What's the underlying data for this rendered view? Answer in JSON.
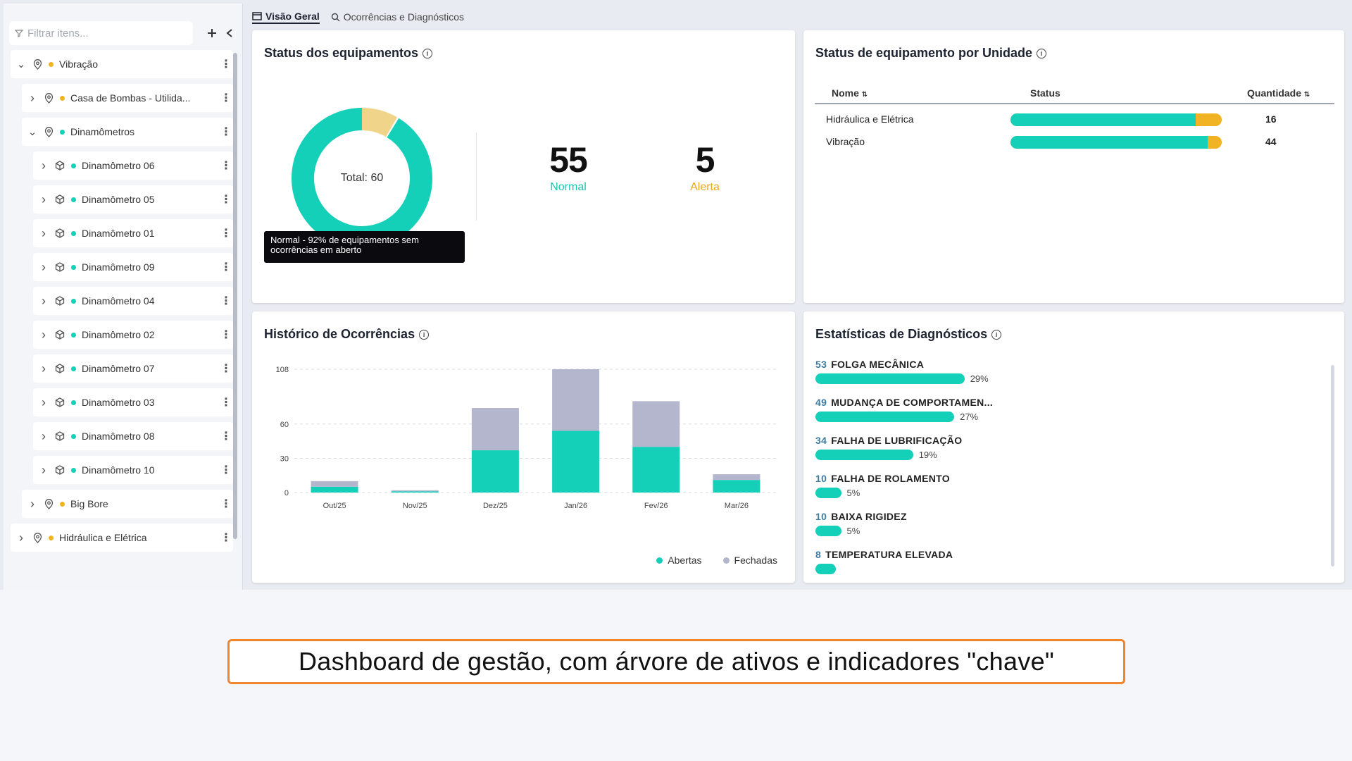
{
  "sidebar": {
    "filter_placeholder": "Filtrar itens...",
    "add_icon": "plus-icon",
    "collapse_icon": "chevron-left-icon",
    "tree": [
      {
        "label": "Vibração",
        "dot": "#f1b323",
        "icon": "location-pin-icon",
        "expanded": true
      },
      {
        "label": "Casa de Bombas - Utilida...",
        "dot": "#f1b323",
        "icon": "location-pin-icon",
        "expanded": false
      },
      {
        "label": "Dinamômetros",
        "dot": "#15d0b8",
        "icon": "location-pin-icon",
        "expanded": true
      },
      {
        "label": "Dinamômetro 06",
        "dot": "#15d0b8",
        "icon": "cube-icon"
      },
      {
        "label": "Dinamômetro 05",
        "dot": "#15d0b8",
        "icon": "cube-icon"
      },
      {
        "label": "Dinamômetro 01",
        "dot": "#15d0b8",
        "icon": "cube-icon"
      },
      {
        "label": "Dinamômetro 09",
        "dot": "#15d0b8",
        "icon": "cube-icon"
      },
      {
        "label": "Dinamômetro 04",
        "dot": "#15d0b8",
        "icon": "cube-icon"
      },
      {
        "label": "Dinamômetro 02",
        "dot": "#15d0b8",
        "icon": "cube-icon"
      },
      {
        "label": "Dinamômetro 07",
        "dot": "#15d0b8",
        "icon": "cube-icon"
      },
      {
        "label": "Dinamômetro 03",
        "dot": "#15d0b8",
        "icon": "cube-icon"
      },
      {
        "label": "Dinamômetro 08",
        "dot": "#15d0b8",
        "icon": "cube-icon"
      },
      {
        "label": "Dinamômetro 10",
        "dot": "#15d0b8",
        "icon": "cube-icon"
      },
      {
        "label": "Big Bore",
        "dot": "#f1b323",
        "icon": "location-pin-icon",
        "expanded": false
      },
      {
        "label": "Hidráulica e Elétrica",
        "dot": "#f1b323",
        "icon": "location-pin-icon",
        "expanded": false
      }
    ]
  },
  "tabs": [
    {
      "label": "Visão Geral",
      "icon": "window-icon",
      "active": true
    },
    {
      "label": "Ocorrências e Diagnósticos",
      "icon": "search-chart-icon",
      "active": false
    }
  ],
  "status_card": {
    "title": "Status dos equipamentos",
    "total_label": "Total: 60",
    "tooltip": "Normal - 92% de equipamentos sem ocorrências em aberto",
    "normal_value": "55",
    "normal_label": "Normal",
    "alert_value": "5",
    "alert_label": "Alerta",
    "colors": {
      "normal": "#15d0b8",
      "alert": "#f1b323",
      "alert_soft": "#f0d48a"
    },
    "donut": {
      "normal": 55,
      "alert": 5
    }
  },
  "unit_card": {
    "title": "Status de equipamento por Unidade",
    "columns": {
      "name": "Nome",
      "status": "Status",
      "qty": "Quantidade"
    },
    "rows": [
      {
        "name": "Hidráulica e Elétrica",
        "qty": "16",
        "normal_fraction": 0.875
      },
      {
        "name": "Vibração",
        "qty": "44",
        "normal_fraction": 0.932
      }
    ]
  },
  "history_card": {
    "title": "Histórico de Ocorrências",
    "legend": [
      {
        "label": "Abertas",
        "color": "#15d0b8"
      },
      {
        "label": "Fechadas",
        "color": "#b3b6cc"
      }
    ]
  },
  "chart_data": {
    "type": "bar",
    "stacked": true,
    "categories": [
      "Out/25",
      "Nov/25",
      "Dez/25",
      "Jan/26",
      "Fev/26",
      "Mar/26"
    ],
    "series": [
      {
        "name": "Abertas",
        "values": [
          5,
          1,
          37,
          54,
          40,
          11
        ]
      },
      {
        "name": "Fechadas",
        "values": [
          5,
          1,
          37,
          54,
          40,
          5
        ]
      }
    ],
    "yticks": [
      0,
      30,
      60,
      108
    ],
    "ylim": [
      0,
      108
    ],
    "grid": true,
    "legend": "bottom-right"
  },
  "diag_card": {
    "title": "Estatísticas de Diagnósticos",
    "items": [
      {
        "count": "53",
        "label": "FOLGA MECÂNICA",
        "pct": "29%",
        "fraction": 0.29
      },
      {
        "count": "49",
        "label": "MUDANÇA DE COMPORTAMEN...",
        "pct": "27%",
        "fraction": 0.27
      },
      {
        "count": "34",
        "label": "FALHA DE LUBRIFICAÇÃO",
        "pct": "19%",
        "fraction": 0.19
      },
      {
        "count": "10",
        "label": "FALHA DE ROLAMENTO",
        "pct": "5%",
        "fraction": 0.05
      },
      {
        "count": "10",
        "label": "BAIXA RIGIDEZ",
        "pct": "5%",
        "fraction": 0.05
      },
      {
        "count": "8",
        "label": "TEMPERATURA ELEVADA",
        "pct": "",
        "fraction": 0.04
      }
    ]
  },
  "caption": "Dashboard de gestão, com árvore de ativos e indicadores \"chave\""
}
